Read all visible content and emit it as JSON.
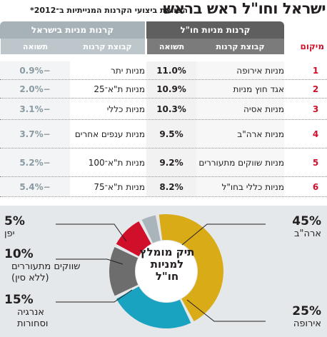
{
  "header": {
    "title": "ישראל וחו\"ל ראש בראש",
    "subtitle": "השוואת ביצועי הקרנות המנייתיות ב־2012*"
  },
  "table": {
    "group_abroad": "קרנות מניות חו\"ל",
    "group_israel": "קרנות מניות בישראל",
    "col_rank": "מיקום",
    "col_abroad_group": "קבוצת קרנות",
    "col_abroad_return": "תשואה",
    "col_israel_group": "קבוצת קרנות",
    "col_israel_return": "תשואה",
    "rows": [
      {
        "rank": "1",
        "abroad_group": "מניות אירופה",
        "abroad_return": "11.0%",
        "israel_group": "מניות יתר",
        "israel_return": "−0.9%"
      },
      {
        "rank": "2",
        "abroad_group": "אגד חוץ מניות",
        "abroad_return": "10.9%",
        "israel_group": "מניות ת\"א־25",
        "israel_return": "−2.0%"
      },
      {
        "rank": "3",
        "abroad_group": "מניות אסיה",
        "abroad_return": "10.3%",
        "israel_group": "מניות כללי",
        "israel_return": "−3.1%"
      },
      {
        "rank": "4",
        "abroad_group": "מניות ארה\"ב",
        "abroad_return": "9.5%",
        "israel_group": "מניות ענפים אחרים",
        "israel_return": "−3.7%"
      },
      {
        "rank": "5",
        "abroad_group": "מניות שווקים מתעוררים",
        "abroad_return": "9.2%",
        "israel_group": "מניות ת\"א־100",
        "israel_return": "−5.2%"
      },
      {
        "rank": "6",
        "abroad_group": "מניות כללי בחו\"ל",
        "abroad_return": "8.2%",
        "israel_group": "מניות ת\"א־75",
        "israel_return": "−5.4%"
      }
    ]
  },
  "chart_data": {
    "type": "pie",
    "title": "תיק מומלץ למניות חו\"ל",
    "slices": [
      {
        "label": "ארה\"ב",
        "value": 45,
        "pct": "45%",
        "color": "#d9ab16"
      },
      {
        "label": "אירופה",
        "value": 25,
        "pct": "25%",
        "color": "#1aa3c0"
      },
      {
        "label": "אנרגיה וסחורות",
        "value": 15,
        "pct": "15%",
        "color": "#6d6d6d"
      },
      {
        "label": "שווקים מתעוררים (ללא סין)",
        "value": 10,
        "pct": "10%",
        "color": "#d0102a"
      },
      {
        "label": "יפן",
        "value": 5,
        "pct": "5%",
        "color": "#a9b5bb"
      }
    ],
    "colors": {
      "accent_red": "#d0102a",
      "header_dark": "#5f5f5f",
      "header_light": "#a7b2b8",
      "panel_bg": "#e4e8ea"
    }
  }
}
